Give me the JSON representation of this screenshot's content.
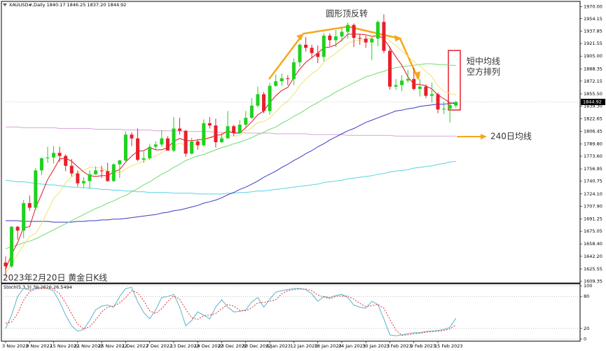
{
  "chart_data": [
    {
      "type": "candlestick",
      "title": "XAUUSD#,Daily 1840.17 1846.25 1837.20 1844.92",
      "annotations": [
        "圆形顶反转",
        "短中均线",
        "空方排列",
        "240日均线",
        "2023年2月20日 黄金日K线"
      ],
      "up_color": "#1fd11f",
      "down_color": "#e8202a",
      "categories": [
        "3 Nov 2022",
        null,
        null,
        null,
        "9 Nov 2022",
        null,
        null,
        null,
        "15 Nov 2022",
        null,
        null,
        null,
        "21 Nov 2022",
        null,
        null,
        null,
        "25 Nov 2022",
        null,
        null,
        null,
        "1 Dec 2022",
        null,
        null,
        null,
        "7 Dec 2022",
        null,
        null,
        null,
        "13 Dec 2022",
        null,
        null,
        null,
        "19 Dec 2022",
        null,
        null,
        null,
        "23 Dec 2022",
        null,
        null,
        null,
        "30 Dec 2022",
        null,
        null,
        null,
        "6 Jan 2023",
        null,
        null,
        null,
        "12 Jan 2023",
        null,
        null,
        null,
        "18 Jan 2023",
        null,
        null,
        null,
        "24 Jan 2023",
        null,
        null,
        null,
        "30 Jan 2023",
        null,
        null,
        null,
        "3 Feb 2023",
        null,
        null,
        null,
        "9 Feb 2023",
        null,
        null,
        null,
        "15 Feb 2023",
        null,
        null,
        null
      ],
      "open": [
        1634,
        1629,
        1681,
        1676,
        1712,
        1706,
        1755,
        1771,
        1772,
        1778,
        1774,
        1761,
        1751,
        1738,
        1741,
        1750,
        1755,
        1754,
        1741,
        1763,
        1768,
        1802,
        1797,
        1769,
        1771,
        1786,
        1789,
        1797,
        1781,
        1810,
        1807,
        1777,
        1793,
        1788,
        1817,
        1814,
        1792,
        1797,
        1813,
        1804,
        1815,
        1824,
        1840,
        1855,
        1833,
        1866,
        1872,
        1876,
        1875,
        1897,
        1920,
        1916,
        1909,
        1904,
        1932,
        1926,
        1931,
        1937,
        1946,
        1929,
        1928,
        1923,
        1928,
        1950,
        1912,
        1865,
        1867,
        1873,
        1875,
        1862,
        1865,
        1853,
        1855,
        1835,
        1836,
        1840.17
      ],
      "high": [
        1642,
        1682,
        1682,
        1716,
        1722,
        1758,
        1772,
        1786,
        1787,
        1786,
        1776,
        1770,
        1755,
        1746,
        1755,
        1760,
        1761,
        1765,
        1764,
        1769,
        1806,
        1805,
        1810,
        1780,
        1790,
        1793,
        1808,
        1800,
        1825,
        1824,
        1808,
        1798,
        1796,
        1822,
        1825,
        1823,
        1804,
        1833,
        1815,
        1821,
        1833,
        1850,
        1865,
        1858,
        1870,
        1881,
        1882,
        1880,
        1902,
        1922,
        1930,
        1920,
        1919,
        1935,
        1935,
        1939,
        1942,
        1949,
        1948,
        1934,
        1932,
        1930,
        1952,
        1960,
        1918,
        1875,
        1880,
        1887,
        1890,
        1875,
        1868,
        1870,
        1857,
        1845,
        1844,
        1846.25
      ],
      "low": [
        1616,
        1627,
        1664,
        1666,
        1702,
        1703,
        1749,
        1765,
        1764,
        1766,
        1754,
        1747,
        1734,
        1732,
        1731,
        1749,
        1745,
        1740,
        1740,
        1745,
        1767,
        1787,
        1767,
        1765,
        1769,
        1782,
        1786,
        1781,
        1779,
        1802,
        1773,
        1776,
        1782,
        1786,
        1810,
        1785,
        1791,
        1797,
        1800,
        1803,
        1812,
        1823,
        1838,
        1830,
        1828,
        1865,
        1866,
        1867,
        1867,
        1891,
        1911,
        1902,
        1896,
        1898,
        1918,
        1917,
        1924,
        1928,
        1917,
        1920,
        1916,
        1900,
        1918,
        1909,
        1861,
        1861,
        1859,
        1870,
        1860,
        1852,
        1850,
        1844,
        1830,
        1829,
        1818,
        1837.2
      ],
      "close": [
        1629,
        1681,
        1676,
        1712,
        1706,
        1755,
        1771,
        1772,
        1778,
        1774,
        1761,
        1751,
        1738,
        1741,
        1750,
        1755,
        1754,
        1741,
        1763,
        1768,
        1802,
        1797,
        1769,
        1771,
        1786,
        1789,
        1797,
        1781,
        1810,
        1807,
        1777,
        1793,
        1788,
        1817,
        1814,
        1792,
        1797,
        1813,
        1804,
        1815,
        1824,
        1840,
        1855,
        1833,
        1866,
        1872,
        1876,
        1875,
        1897,
        1920,
        1916,
        1909,
        1904,
        1932,
        1926,
        1931,
        1937,
        1946,
        1929,
        1928,
        1923,
        1928,
        1950,
        1912,
        1865,
        1867,
        1873,
        1875,
        1862,
        1865,
        1853,
        1855,
        1835,
        1836,
        1841,
        1844.92
      ],
      "series": [
        {
          "color": "#d9a3d9",
          "values": [
            1812,
            1812,
            1812,
            1811,
            1811,
            1811,
            1811,
            1811,
            1811,
            1810,
            1810,
            1810,
            1810,
            1810,
            1810,
            1809,
            1809,
            1809,
            1809,
            1809,
            1808,
            1808,
            1808,
            1808,
            1808,
            1807,
            1807,
            1807,
            1807,
            1807,
            1806,
            1806,
            1806,
            1806,
            1806,
            1805,
            1805,
            1805,
            1805,
            1805,
            1804,
            1804,
            1804,
            1804,
            1804,
            1803,
            1803,
            1803,
            1803,
            1803,
            1803,
            1802,
            1802,
            1802,
            1802,
            1802,
            1802,
            1801,
            1801,
            1801,
            1801,
            1801,
            1801,
            1801,
            1801,
            1800,
            1800,
            1800,
            1800,
            1800,
            1800,
            1800,
            1800,
            1800,
            1800,
            1800
          ]
        },
        {
          "color": "#5ad3e3",
          "values": [
            1742,
            1741,
            1740,
            1740,
            1739,
            1738,
            1737,
            1736,
            1736,
            1735,
            1734,
            1733,
            1733,
            1732,
            1732,
            1731,
            1730,
            1730,
            1729,
            1729,
            1728,
            1728,
            1727,
            1727,
            1726,
            1726,
            1726,
            1726,
            1725,
            1725,
            1725,
            1725,
            1724,
            1724,
            1724,
            1724,
            1724,
            1725,
            1725,
            1726,
            1726,
            1727,
            1728,
            1728,
            1729,
            1730,
            1731,
            1732,
            1733,
            1734,
            1735,
            1736,
            1737,
            1739,
            1740,
            1741,
            1742,
            1744,
            1745,
            1746,
            1747,
            1748,
            1750,
            1751,
            1753,
            1754,
            1755,
            1756,
            1758,
            1759,
            1760,
            1761,
            1763,
            1764,
            1766,
            1767
          ]
        },
        {
          "color": "#3a3ac4",
          "values": [
            1689,
            1689,
            1689,
            1688,
            1688,
            1688,
            1688,
            1688,
            1687,
            1687,
            1687,
            1687,
            1688,
            1688,
            1689,
            1689,
            1690,
            1690,
            1691,
            1691,
            1692,
            1693,
            1694,
            1695,
            1696,
            1697,
            1699,
            1700,
            1702,
            1703,
            1705,
            1707,
            1709,
            1712,
            1714,
            1716,
            1719,
            1723,
            1726,
            1730,
            1733,
            1737,
            1741,
            1746,
            1750,
            1754,
            1759,
            1763,
            1768,
            1772,
            1777,
            1781,
            1786,
            1790,
            1795,
            1799,
            1803,
            1807,
            1810,
            1814,
            1818,
            1821,
            1824,
            1827,
            1830,
            1833,
            1834,
            1836,
            1837,
            1839,
            1840,
            1841,
            1842,
            1842,
            1843,
            1844
          ]
        },
        {
          "color": "#6edc6e",
          "values": [
            1652,
            1655,
            1657,
            1660,
            1662,
            1665,
            1669,
            1673,
            1677,
            1681,
            1685,
            1689,
            1693,
            1697,
            1701,
            1705,
            1708,
            1712,
            1715,
            1719,
            1722,
            1727,
            1731,
            1736,
            1740,
            1745,
            1750,
            1754,
            1759,
            1763,
            1768,
            1771,
            1774,
            1776,
            1779,
            1782,
            1785,
            1787,
            1790,
            1792,
            1795,
            1798,
            1802,
            1805,
            1809,
            1812,
            1817,
            1821,
            1826,
            1830,
            1835,
            1840,
            1844,
            1849,
            1853,
            1858,
            1862,
            1866,
            1870,
            1874,
            1878,
            1880,
            1883,
            1885,
            1888,
            1890,
            1891,
            1892,
            1893,
            1894,
            1895,
            1895,
            1894,
            1894,
            1893,
            1893
          ]
        },
        {
          "color": "#f2e36c",
          "values": [
            1620,
            1632,
            1645,
            1657,
            1668,
            1672,
            1685,
            1702,
            1718,
            1726,
            1739,
            1746,
            1752,
            1755,
            1759,
            1759,
            1758,
            1754,
            1753,
            1752,
            1757,
            1761,
            1764,
            1767,
            1771,
            1774,
            1778,
            1783,
            1787,
            1791,
            1788,
            1788,
            1790,
            1795,
            1798,
            1798,
            1798,
            1801,
            1800,
            1801,
            1806,
            1811,
            1818,
            1819,
            1824,
            1832,
            1840,
            1846,
            1855,
            1866,
            1875,
            1882,
            1887,
            1897,
            1903,
            1909,
            1915,
            1922,
            1925,
            1926,
            1927,
            1929,
            1933,
            1931,
            1925,
            1919,
            1912,
            1905,
            1898,
            1892,
            1885,
            1878,
            1866,
            1859,
            1856,
            1854
          ]
        },
        {
          "color": "#e0141e",
          "values": [
            1625,
            1645,
            1660,
            1680,
            1681,
            1706,
            1724,
            1743,
            1756,
            1770,
            1771,
            1767,
            1760,
            1753,
            1748,
            1747,
            1748,
            1748,
            1753,
            1756,
            1766,
            1774,
            1780,
            1781,
            1785,
            1782,
            1782,
            1785,
            1793,
            1797,
            1794,
            1794,
            1795,
            1796,
            1798,
            1801,
            1802,
            1807,
            1804,
            1804,
            1811,
            1819,
            1828,
            1833,
            1844,
            1853,
            1860,
            1864,
            1877,
            1888,
            1897,
            1903,
            1909,
            1916,
            1917,
            1920,
            1926,
            1934,
            1934,
            1934,
            1933,
            1931,
            1932,
            1928,
            1916,
            1904,
            1893,
            1878,
            1868,
            1868,
            1866,
            1862,
            1854,
            1849,
            1844,
            1842
          ]
        }
      ],
      "ylim": [
        1608,
        1976
      ],
      "yticks": [
        {
          "value": 1970,
          "label": "1970.00"
        },
        1954.15,
        1937.85,
        1921.55,
        {
          "value": 1905,
          "label": "1905.00"
        },
        1888.35,
        1872.15,
        {
          "value": 1855.5,
          "label": "1855.50"
        },
        {
          "value": 1839.3,
          "label": "1839.30"
        },
        1822.65,
        1806.45,
        {
          "value": 1789.8,
          "label": "1789.80"
        },
        {
          "value": 1773.6,
          "label": "1773.60"
        },
        1756.95,
        1740.75,
        {
          "value": 1724.1,
          "label": "1724.10"
        },
        {
          "value": 1707.9,
          "label": "1707.90"
        },
        1691.25,
        1675.05,
        {
          "value": 1658.4,
          "label": "1658.40"
        },
        {
          "value": 1642.2,
          "label": "1642.20"
        },
        1625.55,
        1609.35
      ]
    },
    {
      "type": "line",
      "title": "Stoch(5,3,3) 39.2626 26.5494",
      "ylim": [
        -4,
        104
      ],
      "yticks": [
        100,
        80,
        20,
        0
      ],
      "series": [
        {
          "color": "#5ab4c8",
          "values": [
            20,
            45,
            80,
            95,
            92,
            96,
            97,
            95,
            90,
            70,
            45,
            25,
            15,
            18,
            35,
            55,
            62,
            64,
            60,
            80,
            95,
            97,
            70,
            50,
            38,
            55,
            78,
            80,
            84,
            60,
            25,
            35,
            51,
            45,
            38,
            60,
            74,
            60,
            51,
            52,
            55,
            70,
            78,
            60,
            75,
            88,
            91,
            93,
            95,
            95,
            93,
            85,
            71,
            80,
            78,
            82,
            84,
            78,
            64,
            60,
            58,
            71,
            65,
            38,
            8,
            6,
            8,
            10,
            12,
            12,
            14,
            15,
            16,
            18,
            22,
            39.2626
          ]
        },
        {
          "color": "#e03030",
          "dash": true,
          "values": [
            30,
            32,
            48,
            73,
            89,
            94,
            95,
            96,
            94,
            85,
            68,
            47,
            28,
            19,
            23,
            36,
            51,
            60,
            62,
            68,
            78,
            91,
            87,
            72,
            53,
            48,
            57,
            71,
            81,
            75,
            56,
            40,
            37,
            44,
            45,
            48,
            57,
            65,
            62,
            54,
            53,
            59,
            68,
            69,
            71,
            74,
            85,
            91,
            93,
            94,
            94,
            91,
            83,
            79,
            76,
            80,
            81,
            81,
            75,
            67,
            61,
            63,
            65,
            58,
            37,
            17,
            7,
            8,
            10,
            11,
            13,
            14,
            15,
            16,
            19,
            26.5494
          ]
        }
      ]
    }
  ]
}
